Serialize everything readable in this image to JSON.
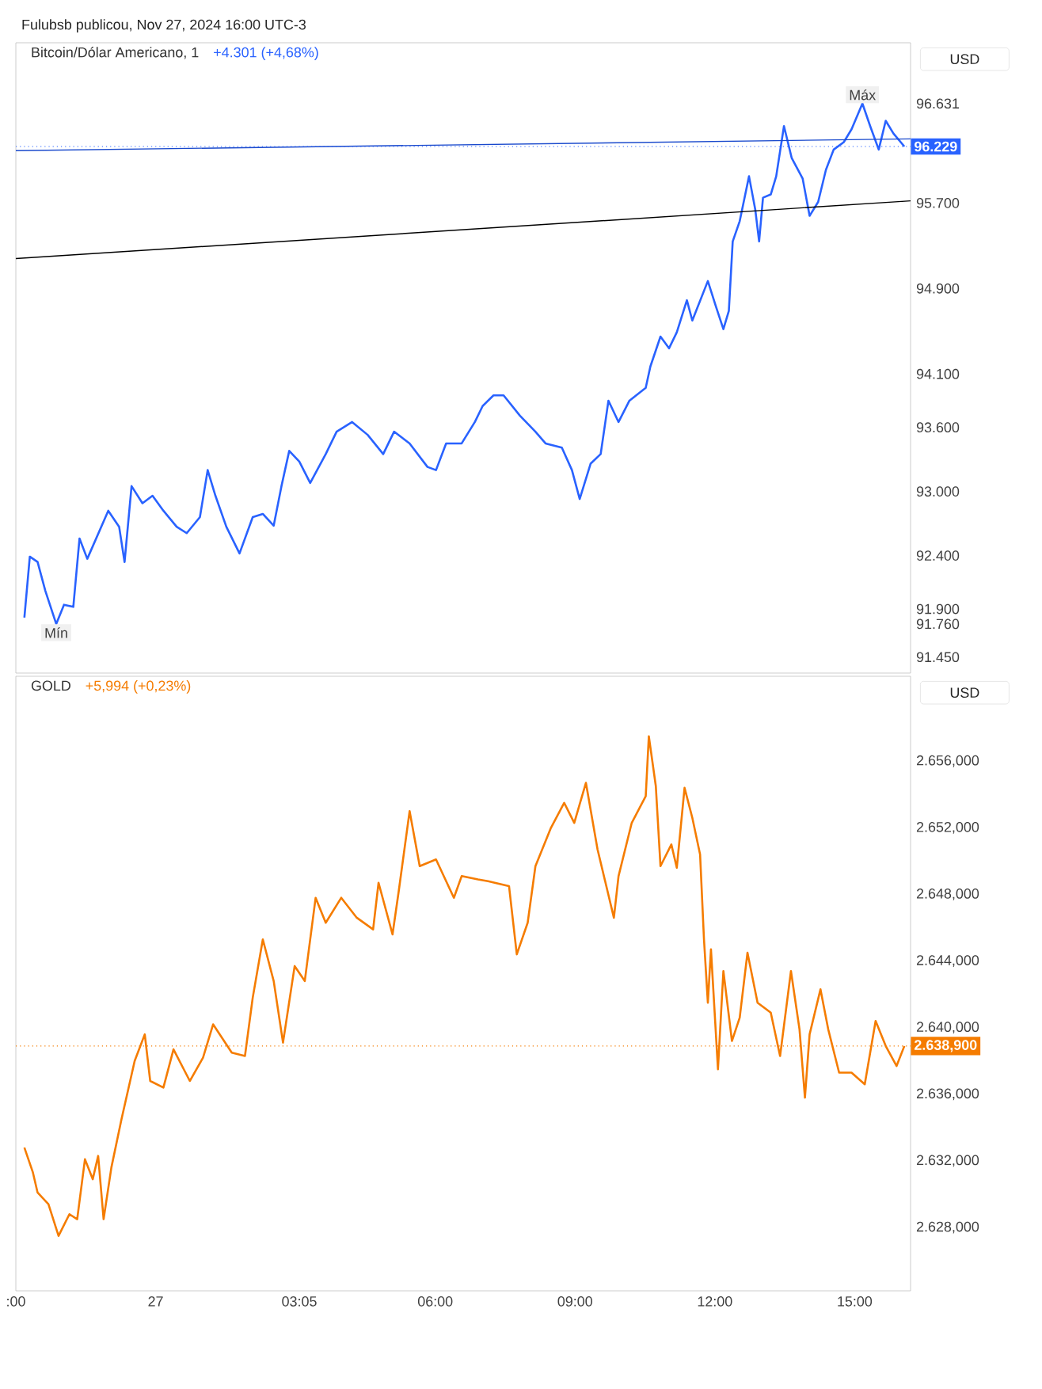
{
  "chart_data": [
    {
      "type": "line",
      "title": "Bitcoin/Dólar Americano, 1",
      "subtitle": "+4.301 (+4,68%)",
      "annotations": [
        "Fulubsb publicou, Nov 27, 2024 16:00 UTC-3",
        "USD",
        {
          "text": "Máx",
          "x": "2024-11-27T15:10",
          "y": 96631
        },
        {
          "text": "Mín",
          "x": "2024-11-26T21:52",
          "y": 91760
        }
      ],
      "xlim": [
        "2024-11-26T21:00",
        "2024-11-27T16:12"
      ],
      "ylim": [
        91300,
        97200
      ],
      "yticks": [
        {
          "value": 91450,
          "label": "91.450"
        },
        {
          "value": 91760,
          "label": "91.760"
        },
        {
          "value": 91900,
          "label": "91.900"
        },
        {
          "value": 92400,
          "label": "92.400"
        },
        {
          "value": 93000,
          "label": "93.000"
        },
        {
          "value": 93600,
          "label": "93.600"
        },
        {
          "value": 94100,
          "label": "94.100"
        },
        {
          "value": 94900,
          "label": "94.900"
        },
        {
          "value": 95700,
          "label": "95.700"
        },
        {
          "value": 96631,
          "label": "96.631"
        }
      ],
      "tick_labels": "y",
      "grid": false,
      "ref_lines": [
        {
          "axis": "y",
          "value": 96229,
          "label": "96.229",
          "color": "#2962ff",
          "line_style": "dotted"
        }
      ],
      "series": [
        {
          "color": "#2962ff",
          "x": [
            "2024-11-26T21:11",
            "2024-11-26T21:18",
            "2024-11-26T21:28",
            "2024-11-26T21:38",
            "2024-11-26T21:52",
            "2024-11-26T22:02",
            "2024-11-26T22:14",
            "2024-11-26T22:22",
            "2024-11-26T22:32",
            "2024-11-26T22:59",
            "2024-11-26T23:13",
            "2024-11-26T23:20",
            "2024-11-26T23:29",
            "2024-11-26T23:43",
            "2024-11-26T23:56",
            "2024-11-27T00:10",
            "2024-11-27T00:27",
            "2024-11-27T00:40",
            "2024-11-27T00:57",
            "2024-11-27T01:07",
            "2024-11-27T01:17",
            "2024-11-27T01:31",
            "2024-11-27T01:48",
            "2024-11-27T02:05",
            "2024-11-27T02:18",
            "2024-11-27T02:32",
            "2024-11-27T02:42",
            "2024-11-27T02:52",
            "2024-11-27T03:05",
            "2024-11-27T03:19",
            "2024-11-27T03:39",
            "2024-11-27T03:53",
            "2024-11-27T04:13",
            "2024-11-27T04:33",
            "2024-11-27T04:53",
            "2024-11-27T05:07",
            "2024-11-27T05:27",
            "2024-11-27T05:50",
            "2024-11-27T06:01",
            "2024-11-27T06:14",
            "2024-11-27T06:34",
            "2024-11-27T06:51",
            "2024-11-27T07:01",
            "2024-11-27T07:15",
            "2024-11-27T07:28",
            "2024-11-27T07:49",
            "2024-11-27T08:09",
            "2024-11-27T08:22",
            "2024-11-27T08:43",
            "2024-11-27T08:56",
            "2024-11-27T09:06",
            "2024-11-27T09:20",
            "2024-11-27T09:33",
            "2024-11-27T09:43",
            "2024-11-27T09:56",
            "2024-11-27T10:10",
            "2024-11-27T10:31",
            "2024-11-27T10:37",
            "2024-11-27T10:50",
            "2024-11-27T11:01",
            "2024-11-27T11:11",
            "2024-11-27T11:24",
            "2024-11-27T11:31",
            "2024-11-27T11:51",
            "2024-11-27T12:01",
            "2024-11-27T12:11",
            "2024-11-27T12:18",
            "2024-11-27T12:23",
            "2024-11-27T12:32",
            "2024-11-27T12:44",
            "2024-11-27T12:52",
            "2024-11-27T12:57",
            "2024-11-27T13:02",
            "2024-11-27T13:12",
            "2024-11-27T13:19",
            "2024-11-27T13:29",
            "2024-11-27T13:39",
            "2024-11-27T13:53",
            "2024-11-27T14:02",
            "2024-11-27T14:13",
            "2024-11-27T14:23",
            "2024-11-27T14:33",
            "2024-11-27T14:46",
            "2024-11-27T14:56",
            "2024-11-27T15:10",
            "2024-11-27T15:20",
            "2024-11-27T15:31",
            "2024-11-27T15:40",
            "2024-11-27T15:50",
            "2024-11-27T16:04"
          ],
          "values": [
            91820,
            92390,
            92340,
            92070,
            91760,
            91940,
            91920,
            92560,
            92370,
            92820,
            92670,
            92340,
            93050,
            92890,
            92960,
            92820,
            92670,
            92610,
            92760,
            93200,
            92960,
            92670,
            92420,
            92760,
            92790,
            92680,
            93050,
            93380,
            93280,
            93080,
            93350,
            93560,
            93650,
            93530,
            93350,
            93560,
            93450,
            93230,
            93200,
            93450,
            93450,
            93650,
            93800,
            93900,
            93900,
            93710,
            93560,
            93450,
            93410,
            93200,
            92930,
            93260,
            93350,
            93850,
            93650,
            93850,
            93970,
            94170,
            94450,
            94340,
            94490,
            94790,
            94600,
            94970,
            94740,
            94520,
            94690,
            95340,
            95530,
            95950,
            95640,
            95340,
            95750,
            95780,
            95950,
            96420,
            96120,
            95930,
            95580,
            95710,
            96010,
            96200,
            96270,
            96390,
            96631,
            96420,
            96200,
            96470,
            96350,
            96229
          ]
        },
        {
          "type": "line",
          "color": "#1848cc",
          "x": [
            "2024-11-26T21:00",
            "2024-11-27T16:12"
          ],
          "values": [
            96190,
            96300
          ]
        },
        {
          "type": "line",
          "color": "#000000",
          "x": [
            "2024-11-26T21:00",
            "2024-11-27T16:12"
          ],
          "values": [
            95180,
            95720
          ]
        }
      ]
    },
    {
      "type": "line",
      "title": "GOLD",
      "subtitle": "+5,994 (+0,23%)",
      "annotations": [
        "USD"
      ],
      "xlim": [
        "2024-11-26T21:00",
        "2024-11-27T16:12"
      ],
      "ylim": [
        2624.2,
        2661.1
      ],
      "xticks": [
        {
          "value": "2024-11-26T21:00",
          "label": ":00"
        },
        {
          "value": "2024-11-27T00:00",
          "label": "27"
        },
        {
          "value": "2024-11-27T03:05",
          "label": "03:05"
        },
        {
          "value": "2024-11-27T06:00",
          "label": "06:00"
        },
        {
          "value": "2024-11-27T09:00",
          "label": "09:00"
        },
        {
          "value": "2024-11-27T12:00",
          "label": "12:00"
        },
        {
          "value": "2024-11-27T15:00",
          "label": "15:00"
        }
      ],
      "yticks": [
        {
          "value": 2628,
          "label": "2.628,000"
        },
        {
          "value": 2632,
          "label": "2.632,000"
        },
        {
          "value": 2636,
          "label": "2.636,000"
        },
        {
          "value": 2640,
          "label": "2.640,000"
        },
        {
          "value": 2644,
          "label": "2.644,000"
        },
        {
          "value": 2648,
          "label": "2.648,000"
        },
        {
          "value": 2652,
          "label": "2.652,000"
        },
        {
          "value": 2656,
          "label": "2.656,000"
        }
      ],
      "grid": false,
      "ref_lines": [
        {
          "axis": "y",
          "value": 2638.9,
          "label": "2.638,900",
          "color": "#f57c00",
          "line_style": "dotted"
        }
      ],
      "series": [
        {
          "color": "#f57c00",
          "x": [
            "2024-11-26T21:11",
            "2024-11-26T21:22",
            "2024-11-26T21:28",
            "2024-11-26T21:42",
            "2024-11-26T21:55",
            "2024-11-26T22:09",
            "2024-11-26T22:19",
            "2024-11-26T22:29",
            "2024-11-26T22:39",
            "2024-11-26T22:46",
            "2024-11-26T22:53",
            "2024-11-26T23:03",
            "2024-11-26T23:16",
            "2024-11-26T23:33",
            "2024-11-26T23:46",
            "2024-11-26T23:53",
            "2024-11-27T00:10",
            "2024-11-27T00:23",
            "2024-11-27T00:44",
            "2024-11-27T01:01",
            "2024-11-27T01:14",
            "2024-11-27T01:38",
            "2024-11-27T01:55",
            "2024-11-27T02:05",
            "2024-11-27T02:18",
            "2024-11-27T02:32",
            "2024-11-27T02:44",
            "2024-11-27T02:59",
            "2024-11-27T03:12",
            "2024-11-27T03:26",
            "2024-11-27T03:39",
            "2024-11-27T03:59",
            "2024-11-27T04:19",
            "2024-11-27T04:40",
            "2024-11-27T04:47",
            "2024-11-27T05:05",
            "2024-11-27T05:13",
            "2024-11-27T05:27",
            "2024-11-27T05:40",
            "2024-11-27T06:01",
            "2024-11-27T06:24",
            "2024-11-27T06:34",
            "2024-11-27T06:55",
            "2024-11-27T07:08",
            "2024-11-27T07:35",
            "2024-11-27T07:45",
            "2024-11-27T07:59",
            "2024-11-27T08:09",
            "2024-11-27T08:29",
            "2024-11-27T08:46",
            "2024-11-27T08:59",
            "2024-11-27T09:14",
            "2024-11-27T09:29",
            "2024-11-27T09:50",
            "2024-11-27T09:56",
            "2024-11-27T10:13",
            "2024-11-27T10:31",
            "2024-11-27T10:35",
            "2024-11-27T10:44",
            "2024-11-27T10:50",
            "2024-11-27T11:04",
            "2024-11-27T11:11",
            "2024-11-27T11:21",
            "2024-11-27T11:31",
            "2024-11-27T11:41",
            "2024-11-27T11:46",
            "2024-11-27T11:51",
            "2024-11-27T11:55",
            "2024-11-27T12:04",
            "2024-11-27T12:11",
            "2024-11-27T12:22",
            "2024-11-27T12:32",
            "2024-11-27T12:42",
            "2024-11-27T12:55",
            "2024-11-27T13:12",
            "2024-11-27T13:24",
            "2024-11-27T13:38",
            "2024-11-27T13:49",
            "2024-11-27T13:56",
            "2024-11-27T14:02",
            "2024-11-27T14:16",
            "2024-11-27T14:26",
            "2024-11-27T14:40",
            "2024-11-27T14:56",
            "2024-11-27T15:13",
            "2024-11-27T15:27",
            "2024-11-27T15:40",
            "2024-11-27T15:54",
            "2024-11-27T16:04"
          ],
          "values": [
            2632.8,
            2631.3,
            2630.1,
            2629.4,
            2627.5,
            2628.8,
            2628.5,
            2632.1,
            2630.9,
            2632.3,
            2628.5,
            2631.6,
            2634.5,
            2638.0,
            2639.6,
            2636.8,
            2636.4,
            2638.7,
            2636.8,
            2638.2,
            2640.2,
            2638.5,
            2638.3,
            2641.8,
            2645.3,
            2642.8,
            2639.1,
            2643.7,
            2642.8,
            2647.8,
            2646.3,
            2647.8,
            2646.6,
            2645.9,
            2648.7,
            2645.6,
            2648.2,
            2653.0,
            2649.7,
            2650.1,
            2647.8,
            2649.1,
            2648.9,
            2648.8,
            2648.5,
            2644.4,
            2646.3,
            2649.7,
            2652.0,
            2653.5,
            2652.3,
            2654.7,
            2650.7,
            2646.6,
            2649.1,
            2652.3,
            2653.9,
            2657.5,
            2654.5,
            2649.7,
            2651.0,
            2649.6,
            2654.4,
            2652.6,
            2650.4,
            2645.3,
            2641.5,
            2644.7,
            2637.5,
            2643.4,
            2639.2,
            2640.6,
            2644.5,
            2641.5,
            2640.9,
            2638.3,
            2643.4,
            2639.9,
            2635.8,
            2639.6,
            2642.3,
            2639.9,
            2637.3,
            2637.3,
            2636.6,
            2640.4,
            2638.9,
            2637.7,
            2638.9
          ]
        }
      ]
    }
  ]
}
